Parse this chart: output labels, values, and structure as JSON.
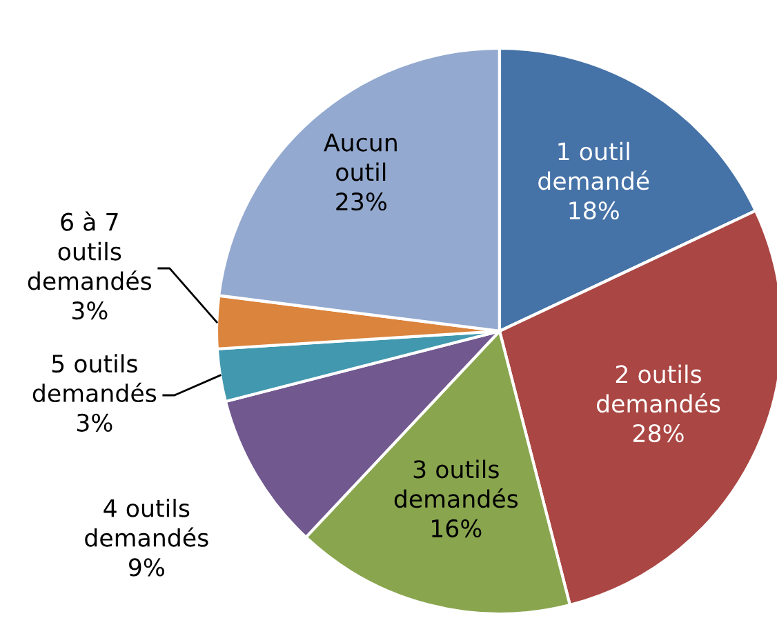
{
  "chart_data": {
    "type": "pie",
    "categories": [
      "1 outil demandé",
      "2 outils demandés",
      "3 outils demandés",
      "4 outils demandés",
      "5 outils demandés",
      "6 à 7 outils demandés",
      "Aucun outil"
    ],
    "values": [
      18,
      28,
      16,
      9,
      3,
      3,
      23
    ],
    "colors": [
      "#4572a7",
      "#aa4643",
      "#89a54e",
      "#71588f",
      "#4198af",
      "#db843d",
      "#93a9cf"
    ],
    "value_labels": [
      "18%",
      "28%",
      "16%",
      "9%",
      "3%",
      "3%",
      "23%"
    ],
    "legend": false
  }
}
